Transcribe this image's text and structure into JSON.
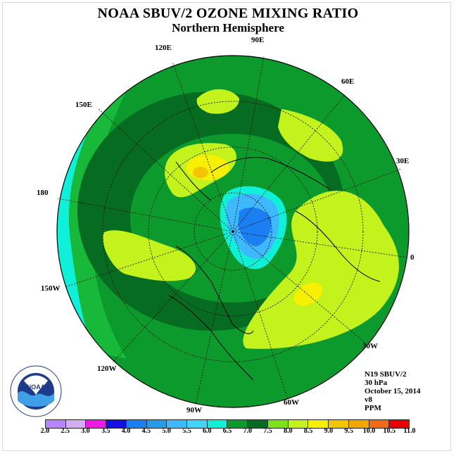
{
  "title": "NOAA SBUV/2 OZONE MIXING RATIO",
  "subtitle": "Northern Hemisphere",
  "map": {
    "projection": "north-polar-stereographic",
    "longitude_labels": [
      "90E",
      "60E",
      "30E",
      "0",
      "30W",
      "60W",
      "90W",
      "120W",
      "150W",
      "180",
      "150E",
      "120E"
    ],
    "field_colors": {
      "outer": "#18ef32",
      "band_mid": "#0e8a2a",
      "band_dark": "#066c21",
      "low_cyan": "#10f0d8",
      "green_yellow": "#c4f21c",
      "light_green": "#92e21a",
      "yellow": "#f7e800",
      "orange": "#f2a600",
      "blue_dark": "#1a7ff0",
      "blue_light": "#3eb8ff"
    }
  },
  "info": {
    "line1": "N19 SBUV/2",
    "line2": "30 hPa",
    "line3": "October 15, 2014",
    "line4": "v8",
    "line5": "PPM"
  },
  "legend": {
    "ticks": [
      "2.0",
      "2.5",
      "3.0",
      "3.5",
      "4.0",
      "4.5",
      "5.0",
      "5.5",
      "6.0",
      "6.5",
      "7.0",
      "7.5",
      "8.0",
      "8.5",
      "9.0",
      "9.5",
      "10.0",
      "10.5",
      "11.0"
    ],
    "colors": [
      "#b586ff",
      "#d6adf3",
      "#ee19e6",
      "#1410e4",
      "#1a7ff0",
      "#259ce8",
      "#3eb8ff",
      "#42d4f4",
      "#10f0d8",
      "#0c9a2c",
      "#066c21",
      "#7de21a",
      "#c4f21c",
      "#f7f000",
      "#f2c500",
      "#f2a600",
      "#f26a18",
      "#e60000",
      "#7a4a2a"
    ]
  },
  "logo_text": "NOAA"
}
